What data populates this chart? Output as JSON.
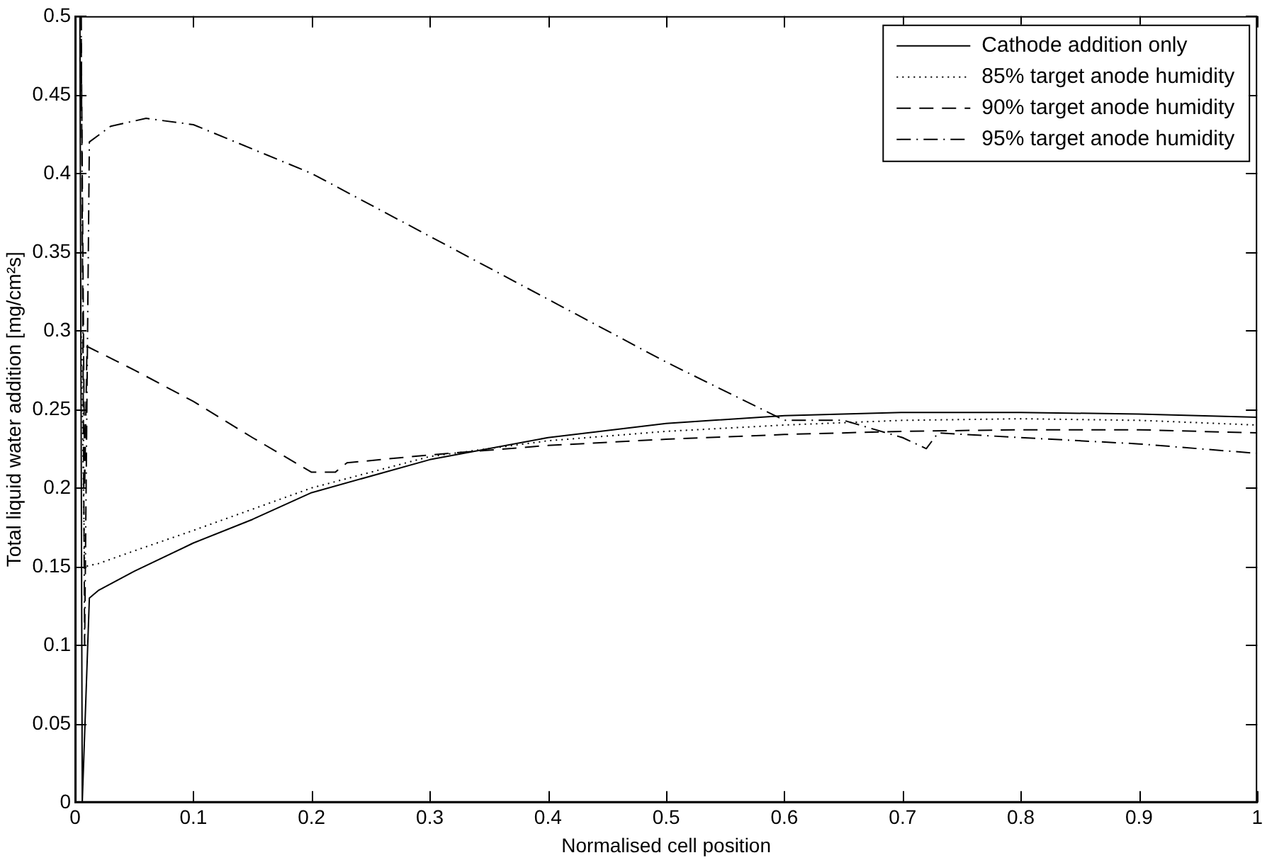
{
  "chart_data": {
    "type": "line",
    "xlabel": "Normalised cell position",
    "ylabel": "Total liquid water addition [mg/cm²s]",
    "xlim": [
      0,
      1
    ],
    "ylim": [
      0,
      0.5
    ],
    "xticks": [
      0,
      0.1,
      0.2,
      0.3,
      0.4,
      0.5,
      0.6,
      0.7,
      0.8,
      0.9,
      1
    ],
    "yticks": [
      0,
      0.05,
      0.1,
      0.15,
      0.2,
      0.25,
      0.3,
      0.35,
      0.4,
      0.45,
      0.5
    ],
    "grid": false,
    "legend": "top right",
    "marker": "none",
    "series": [
      {
        "name": "Cathode addition only",
        "color": "#000000",
        "line_style": "solid",
        "x": [
          0.004,
          0.006,
          0.012,
          0.02,
          0.05,
          0.1,
          0.15,
          0.2,
          0.3,
          0.4,
          0.5,
          0.6,
          0.7,
          0.8,
          0.9,
          1
        ],
        "values": [
          0.5,
          0,
          0.13,
          0.135,
          0.147,
          0.165,
          0.18,
          0.197,
          0.218,
          0.232,
          0.241,
          0.246,
          0.248,
          0.248,
          0.247,
          0.245
        ]
      },
      {
        "name": "85% target anode humidity",
        "color": "#000000",
        "line_style": "dotted",
        "x": [
          0.005,
          0.008,
          0.02,
          0.05,
          0.1,
          0.2,
          0.3,
          0.4,
          0.5,
          0.6,
          0.7,
          0.8,
          0.9,
          1
        ],
        "values": [
          0.3,
          0.15,
          0.152,
          0.16,
          0.173,
          0.2,
          0.22,
          0.23,
          0.236,
          0.24,
          0.243,
          0.244,
          0.243,
          0.24
        ]
      },
      {
        "name": "90% target anode humidity",
        "color": "#000000",
        "line_style": "dashed",
        "x": [
          0.005,
          0.008,
          0.01,
          0.05,
          0.1,
          0.15,
          0.2,
          0.22,
          0.23,
          0.3,
          0.4,
          0.5,
          0.6,
          0.7,
          0.8,
          0.9,
          1
        ],
        "values": [
          0.5,
          0.2,
          0.29,
          0.275,
          0.255,
          0.232,
          0.21,
          0.21,
          0.216,
          0.221,
          0.227,
          0.231,
          0.234,
          0.236,
          0.237,
          0.237,
          0.235
        ]
      },
      {
        "name": "95% target anode humidity",
        "color": "#000000",
        "line_style": "dashdot",
        "x": [
          0.005,
          0.008,
          0.012,
          0.03,
          0.06,
          0.1,
          0.2,
          0.3,
          0.4,
          0.5,
          0.6,
          0.65,
          0.7,
          0.72,
          0.73,
          0.8,
          0.9,
          1
        ],
        "values": [
          0.5,
          0.1,
          0.42,
          0.43,
          0.435,
          0.431,
          0.4,
          0.36,
          0.32,
          0.28,
          0.243,
          0.243,
          0.232,
          0.225,
          0.235,
          0.232,
          0.228,
          0.222
        ]
      }
    ]
  }
}
